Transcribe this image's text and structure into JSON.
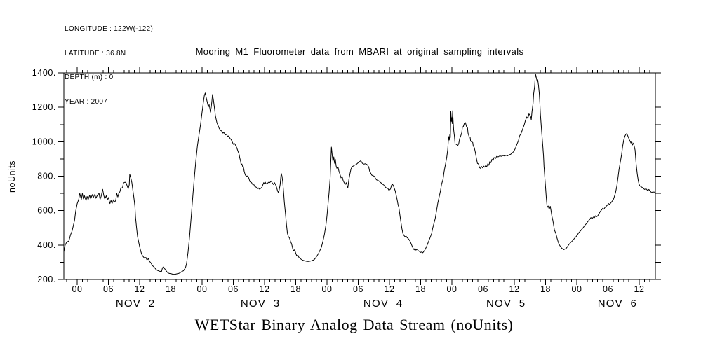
{
  "meta": {
    "lines": [
      "LONGITUDE : 122W(-122)",
      "LATITUDE : 36.8N",
      "DEPTH (m) : 0",
      "YEAR : 2007"
    ]
  },
  "chart_data": {
    "type": "line",
    "title": "Mooring M1 Fluorometer data from MBARI at original sampling intervals",
    "ylabel": "noUnits",
    "caption": "WETStar Binary Analog Data Stream (noUnits)",
    "background": "#ffffff",
    "line_color": "#000000",
    "grid": false,
    "ylim": [
      200,
      1400
    ],
    "y_major_tick_values": [
      200,
      400,
      600,
      800,
      1000,
      1200,
      1400
    ],
    "y_major_tick_labels": [
      "200.",
      "400.",
      "600.",
      "800.",
      "1000.",
      "1200.",
      "1400."
    ],
    "y_minor_step": 100,
    "x_axis": {
      "unit": "hours since 2007-11-02 00:00",
      "range_hours": [
        -2.56,
        111.1
      ],
      "minor_tick_step_hours": 1,
      "major_tick_step_hours": 6,
      "hour_tick_label_cycle": [
        "00",
        "06",
        "12",
        "18"
      ],
      "first_major_hour": 0,
      "last_major_hour": 108,
      "day_labels": [
        {
          "label": "NOV  2",
          "center_hour": 11.2
        },
        {
          "label": "NOV  3",
          "center_hour": 35.2
        },
        {
          "label": "NOV  4",
          "center_hour": 58.8
        },
        {
          "label": "NOV  5",
          "center_hour": 82.4
        },
        {
          "label": "NOV  6",
          "center_hour": 103.8
        }
      ]
    },
    "series": [
      {
        "name": "WETStar fluorometer",
        "x_hours": [
          -2.56,
          -2.3,
          -2.0,
          -1.6,
          -1.3,
          -1.0,
          -0.8,
          -0.5,
          -0.3,
          0.0,
          0.3,
          0.5,
          0.8,
          1.0,
          1.2,
          1.4,
          1.7,
          1.9,
          2.1,
          2.4,
          2.6,
          2.9,
          3.1,
          3.4,
          3.6,
          3.9,
          4.2,
          4.4,
          4.6,
          4.9,
          5.1,
          5.3,
          5.6,
          5.8,
          6.0,
          6.3,
          6.5,
          6.7,
          7.0,
          7.2,
          7.4,
          7.6,
          7.8,
          8.0,
          8.2,
          8.4,
          8.7,
          8.9,
          9.2,
          9.4,
          9.6,
          9.8,
          10.0,
          10.1,
          10.3,
          10.5,
          10.7,
          10.9,
          11.1,
          11.2,
          11.4,
          11.6,
          11.8,
          12.0,
          12.2,
          12.4,
          12.7,
          13.0,
          13.2,
          13.4,
          13.7,
          13.9,
          14.2,
          14.4,
          14.8,
          15.1,
          15.4,
          15.8,
          16.2,
          16.4,
          16.6,
          16.8,
          17.0,
          17.2,
          17.4,
          17.7,
          18.1,
          18.4,
          18.8,
          19.2,
          19.5,
          19.9,
          20.1,
          20.4,
          20.8,
          21.0,
          21.3,
          21.6,
          21.9,
          22.2,
          22.5,
          22.8,
          23.1,
          23.4,
          23.7,
          24.0,
          24.3,
          24.45,
          24.6,
          24.8,
          25.0,
          25.2,
          25.35,
          25.5,
          25.6,
          25.75,
          25.9,
          26.0,
          26.15,
          26.3,
          26.45,
          26.55,
          26.7,
          26.85,
          27.0,
          27.15,
          27.3,
          27.55,
          27.8,
          28.0,
          28.2,
          28.45,
          28.7,
          28.9,
          29.1,
          29.35,
          29.6,
          29.8,
          30.0,
          30.25,
          30.5,
          30.7,
          30.9,
          31.1,
          31.25,
          31.4,
          31.5,
          31.65,
          31.8,
          31.9,
          32.1,
          32.3,
          32.6,
          32.8,
          33.0,
          33.2,
          33.5,
          33.7,
          33.9,
          34.1,
          34.4,
          34.6,
          34.8,
          35.0,
          35.2,
          35.5,
          35.7,
          35.85,
          36.0,
          36.15,
          36.3,
          36.6,
          36.8,
          37.0,
          37.3,
          37.5,
          37.7,
          37.9,
          38.1,
          38.3,
          38.5,
          38.65,
          38.8,
          39.0,
          39.1,
          39.2,
          39.35,
          39.5,
          39.65,
          39.8,
          40.0,
          40.2,
          40.4,
          40.6,
          40.8,
          41.0,
          41.2,
          41.4,
          41.6,
          41.8,
          42.0,
          42.2,
          42.4,
          42.6,
          43.0,
          43.3,
          43.7,
          44.1,
          44.6,
          45.0,
          45.5,
          45.9,
          46.4,
          46.9,
          47.2,
          47.5,
          47.8,
          48.0,
          48.2,
          48.4,
          48.6,
          48.75,
          48.85,
          49.0,
          49.15,
          49.3,
          49.45,
          49.6,
          49.75,
          49.9,
          50.1,
          50.3,
          50.5,
          50.7,
          50.9,
          51.1,
          51.3,
          51.5,
          51.7,
          51.9,
          52.0,
          52.2,
          52.4,
          52.6,
          52.8,
          53.1,
          53.4,
          53.7,
          54.0,
          54.2,
          54.5,
          54.8,
          55.1,
          55.4,
          55.7,
          56.0,
          56.2,
          56.4,
          56.6,
          56.9,
          57.1,
          57.3,
          57.5,
          57.8,
          58.0,
          58.2,
          58.4,
          58.6,
          58.9,
          59.1,
          59.3,
          59.5,
          59.7,
          59.9,
          60.2,
          60.4,
          60.6,
          60.75,
          60.9,
          61.1,
          61.3,
          61.5,
          61.65,
          61.8,
          62.0,
          62.2,
          62.4,
          62.6,
          62.8,
          63.0,
          63.2,
          63.4,
          63.6,
          63.8,
          64.0,
          64.2,
          64.4,
          64.6,
          64.75,
          64.9,
          65.1,
          65.3,
          65.5,
          65.8,
          66.0,
          66.2,
          66.4,
          66.6,
          66.8,
          67.1,
          67.4,
          67.6,
          67.9,
          68.1,
          68.3,
          68.5,
          68.8,
          69.0,
          69.3,
          69.5,
          69.8,
          70.0,
          70.3,
          70.5,
          70.8,
          71.0,
          71.2,
          71.3,
          71.4,
          71.5,
          71.6,
          71.7,
          71.8,
          71.9,
          72.0,
          72.05,
          72.15,
          72.25,
          72.35,
          72.5,
          72.6,
          72.8,
          73.0,
          73.1,
          73.3,
          73.5,
          73.7,
          73.9,
          74.0,
          74.2,
          74.4,
          74.6,
          74.8,
          75.0,
          75.1,
          75.3,
          75.5,
          75.6,
          75.8,
          76.0,
          76.1,
          76.3,
          76.5,
          76.7,
          76.9,
          77.1,
          77.3,
          77.5,
          77.7,
          77.9,
          78.1,
          78.3,
          78.5,
          78.7,
          78.9,
          79.1,
          79.3,
          79.5,
          79.7,
          79.9,
          80.1,
          80.4,
          80.6,
          80.9,
          81.2,
          81.5,
          81.8,
          82.1,
          82.4,
          82.7,
          83.0,
          83.3,
          83.6,
          83.9,
          84.2,
          84.5,
          84.8,
          85.0,
          85.3,
          85.6,
          85.9,
          86.1,
          86.4,
          86.6,
          86.8,
          87.1,
          87.25,
          87.4,
          87.6,
          87.7,
          87.9,
          88.0,
          88.1,
          88.25,
          88.4,
          88.5,
          88.65,
          88.8,
          88.9,
          89.0,
          89.15,
          89.3,
          89.45,
          89.6,
          89.7,
          89.85,
          90.0,
          90.15,
          90.3,
          90.5,
          90.7,
          90.9,
          91.05,
          91.2,
          91.4,
          91.55,
          91.7,
          92.0,
          92.2,
          92.4,
          92.6,
          92.85,
          93.1,
          93.3,
          93.5,
          93.75,
          94.0,
          94.25,
          94.5,
          94.8,
          95.1,
          95.35,
          95.6,
          95.9,
          96.15,
          96.4,
          96.7,
          97.0,
          97.25,
          97.5,
          97.8,
          98.0,
          98.3,
          98.5,
          98.7,
          98.95,
          99.2,
          99.4,
          99.6,
          99.85,
          100.1,
          100.3,
          100.5,
          100.75,
          101.0,
          101.2,
          101.4,
          101.65,
          101.9,
          102.1,
          102.3,
          102.55,
          102.8,
          103.0,
          103.2,
          103.45,
          103.7,
          103.9,
          104.1,
          104.35,
          104.6,
          104.8,
          105.0,
          105.25,
          105.5,
          105.7,
          105.9,
          106.15,
          106.4,
          106.55,
          106.7,
          106.9,
          107.05,
          107.2,
          107.4,
          107.6,
          107.8,
          107.95,
          108.1,
          108.3,
          108.5,
          108.75,
          109.0,
          109.3,
          109.6,
          109.85,
          110.1,
          110.4,
          110.6,
          110.85,
          111.1
        ],
        "values": [
          360,
          400,
          418,
          422,
          458,
          480,
          505,
          545,
          595,
          640,
          665,
          700,
          665,
          700,
          668,
          686,
          658,
          682,
          663,
          690,
          668,
          693,
          676,
          695,
          672,
          690,
          700,
          665,
          682,
          724,
          690,
          668,
          686,
          663,
          676,
          641,
          659,
          641,
          663,
          649,
          659,
          700,
          679,
          700,
          709,
          733,
          731,
          761,
          765,
          761,
          744,
          727,
          750,
          811,
          791,
          763,
          717,
          676,
          625,
          563,
          502,
          450,
          420,
          391,
          366,
          346,
          332,
          322,
          328,
          314,
          321,
          305,
          295,
          282,
          271,
          260,
          253,
          248,
          246,
          268,
          273,
          263,
          254,
          246,
          239,
          235,
          233,
          230,
          230,
          233,
          235,
          241,
          246,
          250,
          268,
          290,
          360,
          450,
          560,
          680,
          790,
          890,
          975,
          1040,
          1100,
          1172,
          1240,
          1270,
          1283,
          1256,
          1229,
          1202,
          1216,
          1193,
          1172,
          1200,
          1240,
          1274,
          1247,
          1213,
          1179,
          1152,
          1131,
          1111,
          1098,
          1088,
          1077,
          1066,
          1061,
          1050,
          1053,
          1039,
          1043,
          1030,
          1034,
          1020,
          1012,
          999,
          985,
          989,
          976,
          962,
          944,
          928,
          904,
          887,
          867,
          871,
          854,
          858,
          827,
          806,
          799,
          802,
          786,
          768,
          763,
          752,
          755,
          741,
          736,
          728,
          732,
          725,
          728,
          736,
          752,
          763,
          755,
          765,
          755,
          760,
          765,
          763,
          772,
          760,
          752,
          763,
          752,
          736,
          714,
          705,
          719,
          752,
          786,
          817,
          800,
          765,
          711,
          650,
          589,
          521,
          468,
          448,
          441,
          420,
          407,
          380,
          366,
          373,
          352,
          336,
          342,
          328,
          318,
          312,
          308,
          305,
          305,
          308,
          314,
          328,
          352,
          386,
          420,
          461,
          516,
          570,
          638,
          706,
          788,
          900,
          969,
          925,
          885,
          912,
          875,
          898,
          860,
          845,
          855,
          828,
          810,
          790,
          800,
          775,
          762,
          752,
          762,
          742,
          733,
          780,
          813,
          840,
          854,
          860,
          865,
          870,
          878,
          883,
          890,
          874,
          870,
          872,
          867,
          855,
          829,
          818,
          806,
          802,
          799,
          788,
          779,
          775,
          772,
          765,
          761,
          755,
          749,
          741,
          734,
          731,
          729,
          718,
          725,
          748,
          752,
          745,
          732,
          715,
          688,
          661,
          634,
          619,
          575,
          535,
          495,
          466,
          455,
          448,
          452,
          443,
          438,
          430,
          420,
          405,
          390,
          378,
          372,
          381,
          370,
          377,
          368,
          362,
          357,
          360,
          355,
          363,
          371,
          389,
          412,
          427,
          450,
          467,
          497,
          521,
          555,
          592,
          646,
          673,
          714,
          752,
          782,
          827,
          874,
          908,
          955,
          999,
          1030,
          1010,
          1044,
          1024,
          1175,
          1118,
          1140,
          1105,
          1180,
          1111,
          1066,
          1030,
          989,
          985,
          982,
          976,
          988,
          1018,
          1034,
          1053,
          1084,
          1088,
          1107,
          1111,
          1088,
          1080,
          1050,
          1030,
          1026,
          1003,
          999,
          996,
          976,
          966,
          939,
          904,
          874,
          871,
          850,
          845,
          856,
          848,
          858,
          852,
          862,
          855,
          872,
          863,
          886,
          878,
          898,
          890,
          908,
          903,
          915,
          912,
          918,
          915,
          920,
          917,
          921,
          918,
          924,
          927,
          935,
          944,
          962,
          985,
          1008,
          1033,
          1049,
          1074,
          1098,
          1121,
          1144,
          1135,
          1162,
          1149,
          1128,
          1176,
          1223,
          1278,
          1325,
          1376,
          1390,
          1366,
          1349,
          1360,
          1325,
          1278,
          1223,
          1162,
          1101,
          1040,
          978,
          917,
          856,
          795,
          734,
          672,
          618,
          627,
          608,
          625,
          600,
          570,
          543,
          516,
          488,
          464,
          441,
          420,
          404,
          391,
          382,
          377,
          373,
          377,
          382,
          393,
          404,
          414,
          423,
          431,
          441,
          450,
          461,
          472,
          482,
          493,
          502,
          513,
          523,
          532,
          543,
          550,
          559,
          554,
          563,
          559,
          570,
          565,
          573,
          584,
          595,
          604,
          614,
          608,
          618,
          625,
          633,
          641,
          636,
          645,
          655,
          663,
          679,
          706,
          744,
          788,
          836,
          881,
          924,
          972,
          1008,
          1033,
          1046,
          1040,
          1026,
          1008,
          992,
          1003,
          981,
          992,
          972,
          951,
          870,
          815,
          774,
          754,
          744,
          740,
          736,
          731,
          723,
          727,
          717,
          723,
          713,
          704,
          709,
          707,
          710
        ]
      }
    ]
  }
}
